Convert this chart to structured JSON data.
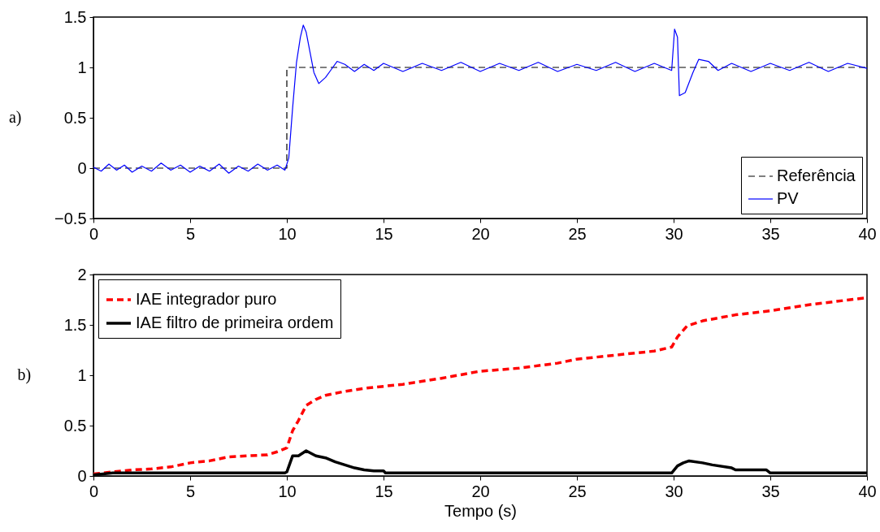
{
  "chart_data": [
    {
      "type": "line",
      "title": "a)",
      "legend": "bottom right",
      "xlim": [
        0,
        40
      ],
      "xticks": [
        0,
        5,
        10,
        15,
        20,
        25,
        30,
        35,
        40
      ],
      "ylim": [
        -0.5,
        1.5
      ],
      "yticks": [
        {
          "value": -0.5,
          "label": "−0.5"
        },
        0,
        0.5,
        1,
        1.5
      ],
      "series": [
        {
          "name": "Referência",
          "color": "#000000",
          "line_style": "dashed",
          "x": [
            0,
            10,
            10,
            40
          ],
          "values": [
            0,
            0,
            1,
            1
          ]
        },
        {
          "name": "PV",
          "color": "#0000ff",
          "line_style": "solid",
          "x": [
            0,
            0.4,
            0.8,
            1.2,
            1.6,
            2,
            2.5,
            3,
            3.5,
            4,
            4.5,
            5,
            5.5,
            6,
            6.5,
            7,
            7.5,
            8,
            8.5,
            9,
            9.5,
            9.9,
            10.1,
            10.3,
            10.5,
            10.7,
            10.85,
            11,
            11.2,
            11.4,
            11.65,
            12,
            12.3,
            12.6,
            13,
            13.5,
            14,
            14.5,
            15,
            16,
            17,
            18,
            19,
            20,
            21,
            22,
            23,
            24,
            25,
            26,
            27,
            28,
            29,
            29.9,
            30.05,
            30.2,
            30.3,
            30.6,
            31,
            31.3,
            31.8,
            32.3,
            33,
            34,
            35,
            36,
            37,
            38,
            39,
            40
          ],
          "values": [
            0.01,
            -0.03,
            0.04,
            -0.02,
            0.03,
            -0.04,
            0.02,
            -0.03,
            0.05,
            -0.02,
            0.03,
            -0.04,
            0.02,
            -0.03,
            0.04,
            -0.05,
            0.02,
            -0.03,
            0.04,
            -0.02,
            0.03,
            -0.02,
            0.1,
            0.6,
            1.05,
            1.3,
            1.42,
            1.35,
            1.15,
            0.95,
            0.84,
            0.9,
            0.98,
            1.06,
            1.03,
            0.96,
            1.03,
            0.97,
            1.04,
            0.96,
            1.04,
            0.97,
            1.05,
            0.96,
            1.04,
            0.97,
            1.05,
            0.96,
            1.03,
            0.97,
            1.05,
            0.96,
            1.04,
            0.97,
            1.38,
            1.3,
            0.72,
            0.75,
            0.95,
            1.08,
            1.06,
            0.97,
            1.04,
            0.96,
            1.04,
            0.97,
            1.05,
            0.96,
            1.04,
            0.99
          ]
        }
      ]
    },
    {
      "type": "line",
      "title": "b)",
      "xlabel": "Tempo (s)",
      "legend": "top left",
      "xlim": [
        0,
        40
      ],
      "xticks": [
        0,
        5,
        10,
        15,
        20,
        25,
        30,
        35,
        40
      ],
      "ylim": [
        0,
        2
      ],
      "yticks": [
        0,
        0.5,
        1,
        1.5,
        2
      ],
      "series": [
        {
          "name": "IAE integrador puro",
          "color": "#ff0000",
          "line_style": "dashed",
          "x": [
            0,
            1,
            2,
            3,
            4,
            5,
            6,
            7,
            8,
            9,
            9.5,
            10,
            10.3,
            10.6,
            11,
            11.5,
            12,
            13,
            14,
            15,
            16,
            18,
            20,
            22,
            24,
            25,
            27,
            29,
            29.9,
            30.2,
            30.7,
            31.5,
            33.2,
            35,
            37,
            40
          ],
          "values": [
            0.02,
            0.04,
            0.06,
            0.07,
            0.09,
            0.13,
            0.15,
            0.19,
            0.2,
            0.21,
            0.24,
            0.28,
            0.45,
            0.55,
            0.7,
            0.76,
            0.8,
            0.84,
            0.87,
            0.89,
            0.91,
            0.97,
            1.04,
            1.07,
            1.12,
            1.16,
            1.2,
            1.24,
            1.28,
            1.38,
            1.49,
            1.54,
            1.6,
            1.64,
            1.7,
            1.77
          ]
        },
        {
          "name": "IAE filtro de primeira ordem",
          "color": "#000000",
          "line_style": "solid",
          "x": [
            0,
            1,
            2,
            5,
            9.9,
            10,
            10.3,
            10.6,
            11,
            11.5,
            12,
            12.5,
            13,
            13.5,
            14,
            14.5,
            15,
            15.1,
            20,
            29.9,
            30.2,
            30.5,
            30.8,
            31.5,
            32,
            33,
            33.2,
            34.8,
            35,
            40
          ],
          "values": [
            0.01,
            0.03,
            0.03,
            0.03,
            0.03,
            0.04,
            0.2,
            0.2,
            0.25,
            0.2,
            0.18,
            0.14,
            0.11,
            0.08,
            0.06,
            0.05,
            0.05,
            0.03,
            0.03,
            0.03,
            0.1,
            0.13,
            0.15,
            0.13,
            0.11,
            0.08,
            0.06,
            0.06,
            0.03,
            0.03
          ]
        }
      ]
    }
  ]
}
